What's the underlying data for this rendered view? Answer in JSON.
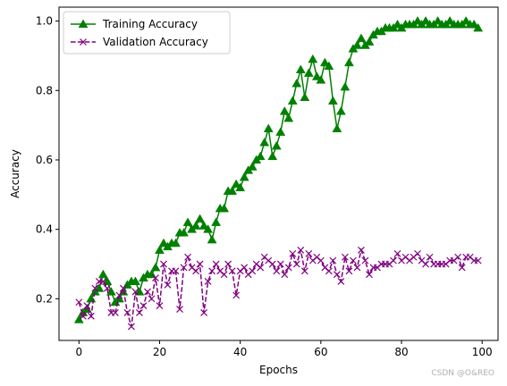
{
  "chart_data": {
    "type": "line",
    "xlabel": "Epochs",
    "ylabel": "Accuracy",
    "xlim": [
      -4.95,
      103.95
    ],
    "ylim": [
      0.08,
      1.04
    ],
    "xticks": [
      0,
      20,
      40,
      60,
      80,
      100
    ],
    "yticks": [
      0.2,
      0.4,
      0.6,
      0.8,
      1.0
    ],
    "ytick_labels": [
      "0.2",
      "0.4",
      "0.6",
      "0.8",
      "1.0"
    ],
    "grid": false,
    "legend": "top-left",
    "series": [
      {
        "name": "Training Accuracy",
        "color": "#008000",
        "linestyle": "solid",
        "marker": "triangle",
        "values": [
          0.14,
          0.16,
          0.17,
          0.2,
          0.22,
          0.23,
          0.27,
          0.25,
          0.22,
          0.19,
          0.2,
          0.22,
          0.24,
          0.25,
          0.25,
          0.22,
          0.26,
          0.27,
          0.27,
          0.29,
          0.34,
          0.36,
          0.35,
          0.36,
          0.36,
          0.39,
          0.39,
          0.42,
          0.4,
          0.41,
          0.43,
          0.41,
          0.4,
          0.37,
          0.42,
          0.46,
          0.46,
          0.51,
          0.51,
          0.53,
          0.52,
          0.55,
          0.57,
          0.58,
          0.6,
          0.61,
          0.65,
          0.69,
          0.61,
          0.64,
          0.68,
          0.74,
          0.72,
          0.77,
          0.82,
          0.86,
          0.78,
          0.85,
          0.89,
          0.84,
          0.83,
          0.88,
          0.87,
          0.77,
          0.69,
          0.74,
          0.81,
          0.88,
          0.92,
          0.93,
          0.95,
          0.93,
          0.94,
          0.96,
          0.97,
          0.97,
          0.98,
          0.98,
          0.98,
          0.99,
          0.98,
          0.99,
          0.99,
          0.99,
          1.0,
          0.99,
          1.0,
          0.99,
          0.99,
          1.0,
          0.99,
          0.99,
          1.0,
          0.99,
          0.99,
          0.99,
          1.0,
          0.99,
          0.99,
          0.98
        ]
      },
      {
        "name": "Validation Accuracy",
        "color": "#800080",
        "linestyle": "dashed",
        "marker": "x",
        "values": [
          0.19,
          0.15,
          0.18,
          0.15,
          0.23,
          0.25,
          0.25,
          0.23,
          0.16,
          0.16,
          0.21,
          0.23,
          0.16,
          0.12,
          0.22,
          0.16,
          0.18,
          0.22,
          0.2,
          0.26,
          0.18,
          0.3,
          0.24,
          0.28,
          0.28,
          0.17,
          0.29,
          0.32,
          0.29,
          0.28,
          0.3,
          0.16,
          0.25,
          0.28,
          0.3,
          0.28,
          0.27,
          0.3,
          0.28,
          0.21,
          0.28,
          0.29,
          0.27,
          0.28,
          0.3,
          0.29,
          0.32,
          0.31,
          0.3,
          0.28,
          0.3,
          0.27,
          0.29,
          0.33,
          0.3,
          0.34,
          0.28,
          0.33,
          0.31,
          0.32,
          0.31,
          0.29,
          0.28,
          0.31,
          0.27,
          0.25,
          0.32,
          0.28,
          0.31,
          0.29,
          0.34,
          0.31,
          0.27,
          0.29,
          0.29,
          0.3,
          0.3,
          0.3,
          0.31,
          0.33,
          0.31,
          0.32,
          0.31,
          0.32,
          0.33,
          0.31,
          0.3,
          0.32,
          0.3,
          0.3,
          0.3,
          0.3,
          0.31,
          0.31,
          0.32,
          0.29,
          0.32,
          0.32,
          0.31,
          0.31
        ]
      }
    ]
  },
  "watermark": "CSDN @O&REO"
}
